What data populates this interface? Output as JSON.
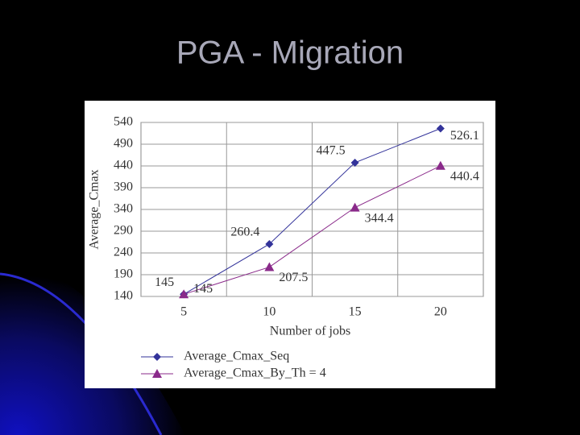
{
  "chart_data": {
    "type": "line",
    "title": "PGA - Migration",
    "x_label": "Number of jobs",
    "y_label": "Average_Cmax",
    "categories": [
      "5",
      "10",
      "15",
      "20"
    ],
    "series": [
      {
        "name": "Average_Cmax_Seq",
        "color": "#33339a",
        "marker": "diamond",
        "values": [
          145,
          260.4,
          447.5,
          526.1
        ]
      },
      {
        "name": "Average_Cmax_By_Th = 4",
        "color": "#8a2a8a",
        "marker": "triangle",
        "values": [
          145,
          207.5,
          344.4,
          440.4
        ]
      }
    ],
    "ylim": [
      140,
      540
    ],
    "yticks": [
      140,
      190,
      240,
      290,
      340,
      390,
      440,
      490,
      540
    ],
    "grid": true
  }
}
